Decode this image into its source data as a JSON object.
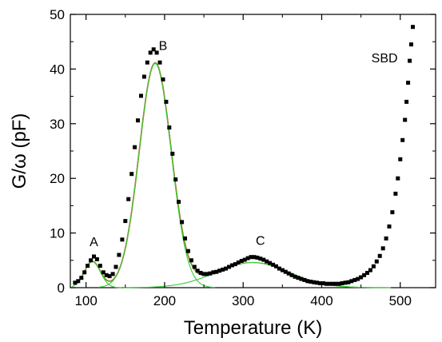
{
  "chart_data": {
    "type": "scatter",
    "xlabel": "Temperature (K)",
    "ylabel": "G/ω (pF)",
    "xlim": [
      80,
      545
    ],
    "ylim": [
      0,
      50
    ],
    "xticks": [
      100,
      200,
      300,
      400,
      500
    ],
    "yticks": [
      0,
      10,
      20,
      30,
      40,
      50
    ],
    "grid": false,
    "legend": "none",
    "annotations": [
      {
        "text": "A",
        "x": 110,
        "y": 7.6
      },
      {
        "text": "B",
        "x": 198,
        "y": 43.5
      },
      {
        "text": "C",
        "x": 322,
        "y": 7.8
      },
      {
        "text": "SBD",
        "x": 480,
        "y": 41.2
      }
    ],
    "data_points": {
      "color": "#000000",
      "marker": "square",
      "x": [
        86,
        90,
        94,
        98,
        102,
        106,
        110,
        114,
        118,
        122,
        126,
        130,
        134,
        138,
        142,
        146,
        150,
        154,
        158,
        162,
        166,
        170,
        174,
        178,
        182,
        186,
        190,
        194,
        198,
        202,
        206,
        210,
        214,
        218,
        222,
        226,
        230,
        234,
        238,
        242,
        246,
        250,
        254,
        258,
        262,
        266,
        270,
        274,
        278,
        282,
        286,
        290,
        294,
        298,
        302,
        306,
        310,
        314,
        318,
        322,
        326,
        330,
        334,
        338,
        342,
        346,
        350,
        354,
        358,
        362,
        366,
        370,
        374,
        378,
        382,
        386,
        390,
        394,
        398,
        402,
        406,
        410,
        414,
        418,
        422,
        426,
        430,
        434,
        438,
        442,
        446,
        450,
        454,
        458,
        462,
        466,
        470,
        474,
        478,
        482,
        486,
        490,
        494,
        497,
        500,
        503,
        506,
        508,
        510,
        512,
        514,
        516
      ],
      "y": [
        0.9,
        1.2,
        1.8,
        2.8,
        4.0,
        5.0,
        5.7,
        5.2,
        4.0,
        2.8,
        2.3,
        2.1,
        2.5,
        3.8,
        6.0,
        8.8,
        12.2,
        16.2,
        20.8,
        25.7,
        30.6,
        35.1,
        38.6,
        41.2,
        43.0,
        43.6,
        43.0,
        41.2,
        38.1,
        34.0,
        29.3,
        24.5,
        19.8,
        15.7,
        12.0,
        9.0,
        6.7,
        5.0,
        3.8,
        3.1,
        2.7,
        2.5,
        2.5,
        2.6,
        2.8,
        2.9,
        3.1,
        3.3,
        3.5,
        3.8,
        4.1,
        4.3,
        4.6,
        4.9,
        5.1,
        5.4,
        5.6,
        5.6,
        5.5,
        5.3,
        5.1,
        4.8,
        4.5,
        4.2,
        3.9,
        3.5,
        3.2,
        2.9,
        2.6,
        2.3,
        2.0,
        1.8,
        1.6,
        1.4,
        1.2,
        1.1,
        1.0,
        0.9,
        0.8,
        0.8,
        0.7,
        0.7,
        0.7,
        0.7,
        0.7,
        0.8,
        0.9,
        1.0,
        1.2,
        1.4,
        1.6,
        1.9,
        2.3,
        2.7,
        3.2,
        3.9,
        4.8,
        5.8,
        7.2,
        9.0,
        11.2,
        13.8,
        17.2,
        20.0,
        23.5,
        27.0,
        30.7,
        34.0,
        37.5,
        41.5,
        44.5,
        47.7
      ]
    },
    "fit_components": {
      "color": "#33cc33",
      "peaks": [
        {
          "name": "A",
          "center": 108,
          "height": 4.8,
          "width": 24
        },
        {
          "name": "B",
          "center": 188,
          "height": 41.0,
          "width": 48
        },
        {
          "name": "C",
          "center": 312,
          "height": 4.6,
          "width": 110
        }
      ]
    },
    "fit_sum": {
      "color": "#ee1111",
      "x_range": [
        95,
        255
      ]
    },
    "fit_overlay": {
      "color": "#66aa22",
      "x_range": [
        95,
        450
      ]
    }
  }
}
